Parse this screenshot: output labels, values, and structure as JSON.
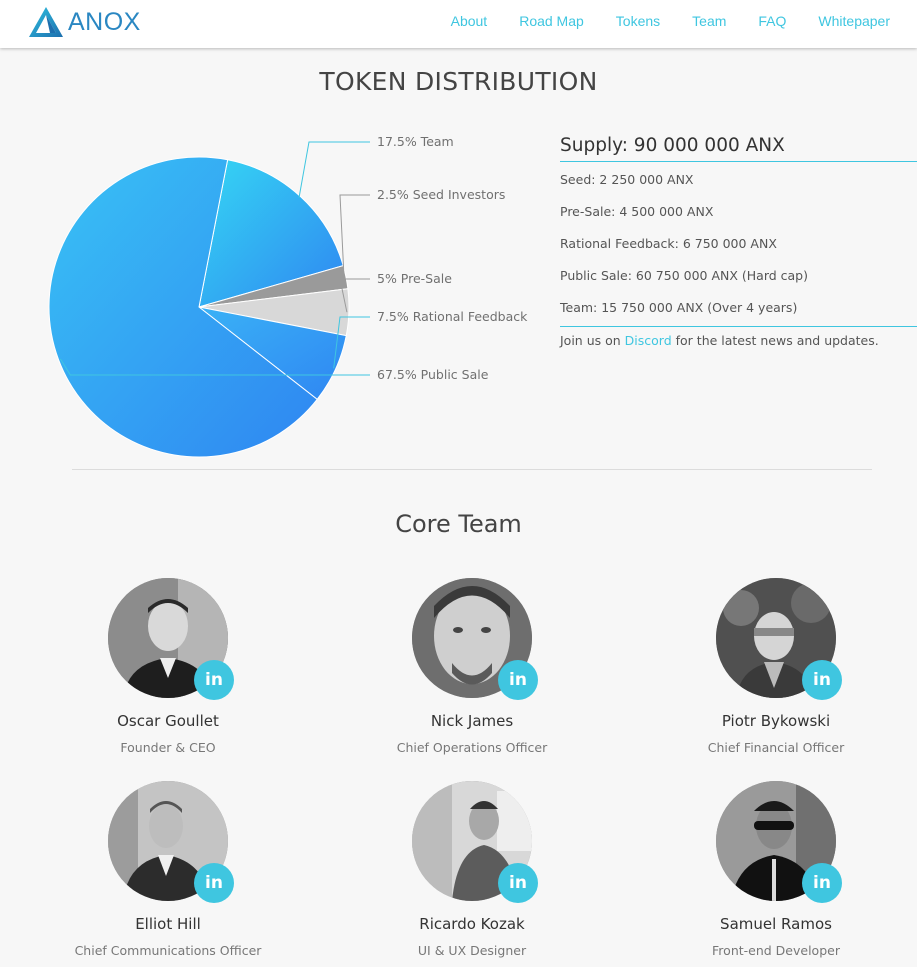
{
  "header": {
    "logo_text": "ANOX",
    "nav": [
      "About",
      "Road Map",
      "Tokens",
      "Team",
      "FAQ",
      "Whitepaper"
    ]
  },
  "distribution": {
    "title": "TOKEN DISTRIBUTION",
    "supply_title": "Supply: 90 000 000 ANX",
    "lines": [
      "Seed: 2 250 000 ANX",
      "Pre-Sale: 4 500 000 ANX",
      "Rational Feedback: 6 750 000 ANX",
      "Public Sale: 60 750 000 ANX (Hard cap)",
      "Team: 15 750 000 ANX (Over 4 years)"
    ],
    "join_prefix": "Join us on ",
    "join_link": "Discord",
    "join_suffix": " for the latest news and updates."
  },
  "chart_data": {
    "type": "pie",
    "title": "",
    "slices": [
      {
        "label": "67.5% Public Sale",
        "value": 67.5,
        "color": "#39c2f4"
      },
      {
        "label": "17.5% Team",
        "value": 17.5,
        "color": "#35d7f3"
      },
      {
        "label": "2.5% Seed Investors",
        "value": 2.5,
        "color": "#9a9a9a"
      },
      {
        "label": "5% Pre-Sale",
        "value": 5,
        "color": "#d8d8d8"
      },
      {
        "label": "7.5% Rational Feedback",
        "value": 7.5,
        "color": "#3ab2f6"
      }
    ]
  },
  "team": {
    "title": "Core Team",
    "linkedin_label": "in",
    "members": [
      {
        "name": "Oscar Goullet",
        "role": "Founder & CEO"
      },
      {
        "name": "Nick James",
        "role": "Chief Operations Officer"
      },
      {
        "name": "Piotr Bykowski",
        "role": "Chief Financial Officer"
      },
      {
        "name": "Elliot Hill",
        "role": "Chief Communications Officer"
      },
      {
        "name": "Ricardo Kozak",
        "role": "UI & UX Designer"
      },
      {
        "name": "Samuel Ramos",
        "role": "Front-end Developer"
      }
    ]
  },
  "colors": {
    "accent": "#3fc6e0",
    "logo": "#2a87c2"
  }
}
